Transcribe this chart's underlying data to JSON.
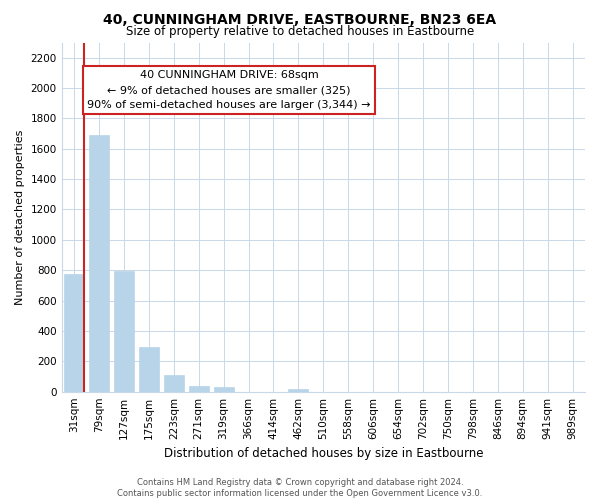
{
  "title": "40, CUNNINGHAM DRIVE, EASTBOURNE, BN23 6EA",
  "subtitle": "Size of property relative to detached houses in Eastbourne",
  "xlabel": "Distribution of detached houses by size in Eastbourne",
  "ylabel": "Number of detached properties",
  "categories": [
    "31sqm",
    "79sqm",
    "127sqm",
    "175sqm",
    "223sqm",
    "271sqm",
    "319sqm",
    "366sqm",
    "414sqm",
    "462sqm",
    "510sqm",
    "558sqm",
    "606sqm",
    "654sqm",
    "702sqm",
    "750sqm",
    "798sqm",
    "846sqm",
    "894sqm",
    "941sqm",
    "989sqm"
  ],
  "values": [
    775,
    1690,
    795,
    295,
    110,
    35,
    30,
    0,
    0,
    20,
    0,
    0,
    0,
    0,
    0,
    0,
    0,
    0,
    0,
    0,
    0
  ],
  "bar_color_normal": "#b8d4e8",
  "bar_color_highlight": "#cc2222",
  "highlight_bar_color": "#b8d4e8",
  "red_line_x": 0,
  "annotation_title": "40 CUNNINGHAM DRIVE: 68sqm",
  "annotation_line1": "← 9% of detached houses are smaller (325)",
  "annotation_line2": "90% of semi-detached houses are larger (3,344) →",
  "annotation_box_facecolor": "#ffffff",
  "annotation_box_edgecolor": "#cc2222",
  "ylim": [
    0,
    2300
  ],
  "yticks": [
    0,
    200,
    400,
    600,
    800,
    1000,
    1200,
    1400,
    1600,
    1800,
    2000,
    2200
  ],
  "footer_line1": "Contains HM Land Registry data © Crown copyright and database right 2024.",
  "footer_line2": "Contains public sector information licensed under the Open Government Licence v3.0.",
  "background_color": "#ffffff",
  "grid_color": "#c8d8e8",
  "title_fontsize": 10,
  "subtitle_fontsize": 8.5,
  "ylabel_fontsize": 8,
  "xlabel_fontsize": 8.5,
  "tick_fontsize": 7.5,
  "annotation_fontsize": 8,
  "footer_fontsize": 6
}
